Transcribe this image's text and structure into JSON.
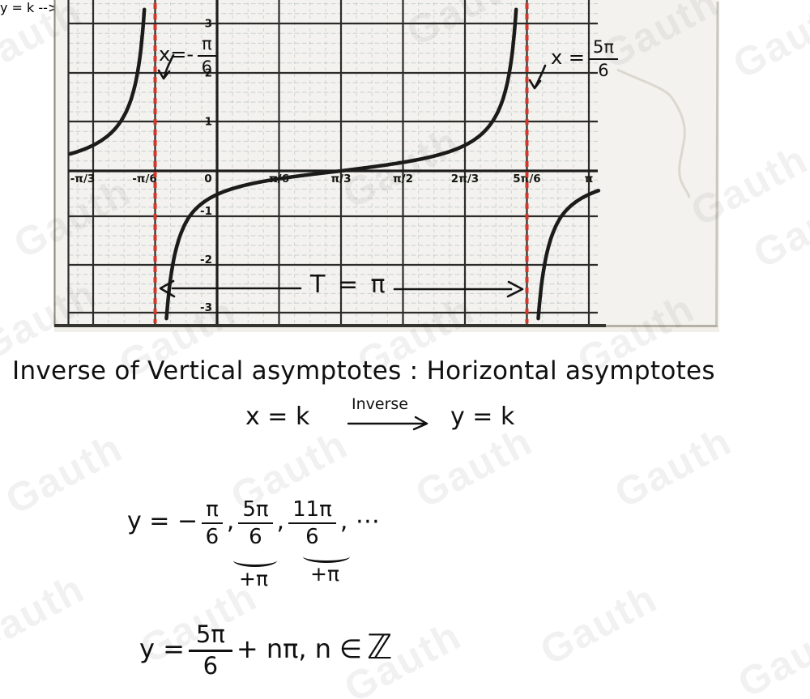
{
  "watermark": "Gauth",
  "chart_data": {
    "type": "line",
    "function": "y = tan(x − π/3)",
    "x_ticks": [
      {
        "label": "-π/3",
        "v": -0.33333
      },
      {
        "label": "-π/6",
        "v": -0.16667
      },
      {
        "label": "0",
        "v": 0
      },
      {
        "label": "π/6",
        "v": 0.16667
      },
      {
        "label": "π/3",
        "v": 0.33333
      },
      {
        "label": "π/2",
        "v": 0.5
      },
      {
        "label": "2π/3",
        "v": 0.66667
      },
      {
        "label": "5π/6",
        "v": 0.83333
      },
      {
        "label": "π",
        "v": 1
      }
    ],
    "y_ticks": [
      3,
      2,
      1,
      -1,
      -2,
      -3
    ],
    "vertical_asymptotes": [
      {
        "label": "x = -π/6",
        "v": -0.16667
      },
      {
        "label": "x = 5π/6",
        "v": 0.83333
      }
    ],
    "branch_centers_pi": [
      -0.66667,
      0.33333,
      1.33333
    ],
    "visual_y_scale": 0.3,
    "period": "π",
    "xlim_pi": [
      -0.4,
      1.03
    ],
    "ylim": [
      -3.4,
      3.5
    ],
    "curve_color": "#1b1b19",
    "asymptote_color": "#d2352a",
    "grid": true
  },
  "graph_annotations": {
    "asym_left_prefix": "x=-",
    "asym_left_num": "π",
    "asym_left_den": "6",
    "asym_right_prefix": "x =",
    "asym_right_num": "5π",
    "asym_right_den": "6",
    "period_label": "T = π"
  },
  "notes": {
    "heading": "Inverse of Vertical asymptotes : Horizontal asymptotes",
    "map_lhs": "x = k",
    "map_arrow_label": "Inverse",
    "map_rhs": "y = k",
    "seq_lead": "y = −",
    "f1_num": "π",
    "f1_den": "6",
    "sep1": ",",
    "f2_num": "5π",
    "f2_den": "6",
    "sep2": ",",
    "f3_num": "11π",
    "f3_den": "6",
    "sep3": ", ⋯",
    "plus_pi_1": "+π",
    "plus_pi_2": "+π",
    "gen_lead": "y =",
    "gen_num": "5π",
    "gen_den": "6",
    "gen_rest": "+ nπ, n ∈",
    "gen_z": "ℤ"
  }
}
